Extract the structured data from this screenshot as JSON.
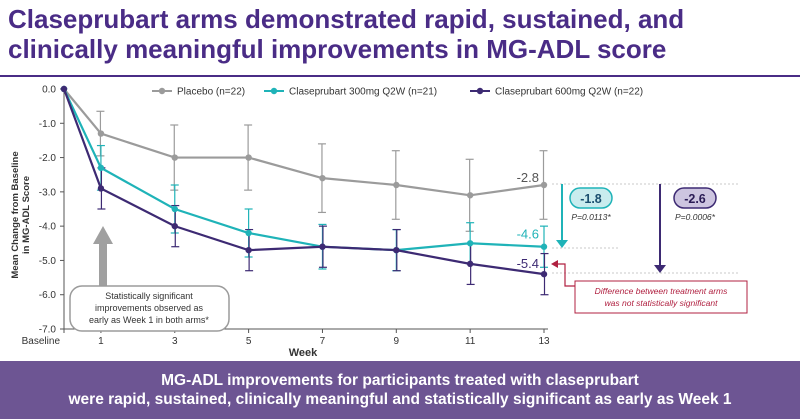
{
  "title": {
    "line1": "Claseprubart arms demonstrated rapid, sustained, and",
    "line2": "clinically meaningful improvements in MG-ADL score"
  },
  "chart_data": {
    "type": "line",
    "x": [
      0,
      1,
      3,
      5,
      7,
      9,
      11,
      13
    ],
    "x_tick_labels": [
      "Baseline",
      "1",
      "3",
      "5",
      "7",
      "9",
      "11",
      "13"
    ],
    "xlabel": "Week",
    "ylabel_line1": "Mean Change from Baseline",
    "ylabel_line2": "in MG-ADL Score",
    "ylim": [
      -7.0,
      0.0
    ],
    "y_ticks": [
      0.0,
      -1.0,
      -2.0,
      -3.0,
      -4.0,
      -5.0,
      -6.0,
      -7.0
    ],
    "y_tick_labels": [
      "0.0",
      "-1.0",
      "-2.0",
      "-3.0",
      "-4.0",
      "-5.0",
      "-6.0",
      "-7.0"
    ],
    "legend_position": "top",
    "series": [
      {
        "name": "Placebo (n=22)",
        "color": "#9b9b9b",
        "values": [
          0,
          -1.3,
          -2.0,
          -2.0,
          -2.6,
          -2.8,
          -3.1,
          -2.8
        ],
        "error": [
          0,
          0.65,
          0.95,
          0.95,
          1.0,
          1.0,
          1.05,
          1.0
        ],
        "end_label": "-2.8"
      },
      {
        "name": "Claseprubart 300mg Q2W (n=21)",
        "color": "#1fb3b8",
        "values": [
          0,
          -2.3,
          -3.5,
          -4.2,
          -4.6,
          -4.7,
          -4.5,
          -4.6
        ],
        "error": [
          0,
          0.65,
          0.7,
          0.7,
          0.65,
          0.6,
          0.6,
          0.6
        ],
        "end_label": "-4.6"
      },
      {
        "name": "Claseprubart 600mg Q2W (n=22)",
        "color": "#3d2a73",
        "values": [
          0,
          -2.9,
          -4.0,
          -4.7,
          -4.6,
          -4.7,
          -5.1,
          -5.4
        ],
        "error": [
          0,
          0.6,
          0.6,
          0.6,
          0.6,
          0.6,
          0.6,
          0.6
        ],
        "end_label": "-5.4"
      }
    ],
    "annotations": {
      "diff_300": "-1.8",
      "p_300": "P=0.0113*",
      "diff_600": "-2.6",
      "p_600": "P=0.0006*",
      "early_line1": "Statistically significant",
      "early_line2": "improvements observed as",
      "early_line3": "early as Week 1 in both arms*",
      "between_line1": "Difference between treatment arms",
      "between_line2": "was not statistically significant"
    }
  },
  "banner": {
    "line1": "MG-ADL improvements for participants treated with claseprubart",
    "line2": "were rapid, sustained, clinically meaningful and statistically significant as early as Week 1"
  },
  "colors": {
    "title": "#4a2c86",
    "banner_bg": "#6d5593",
    "annotation_red": "#b02040"
  }
}
